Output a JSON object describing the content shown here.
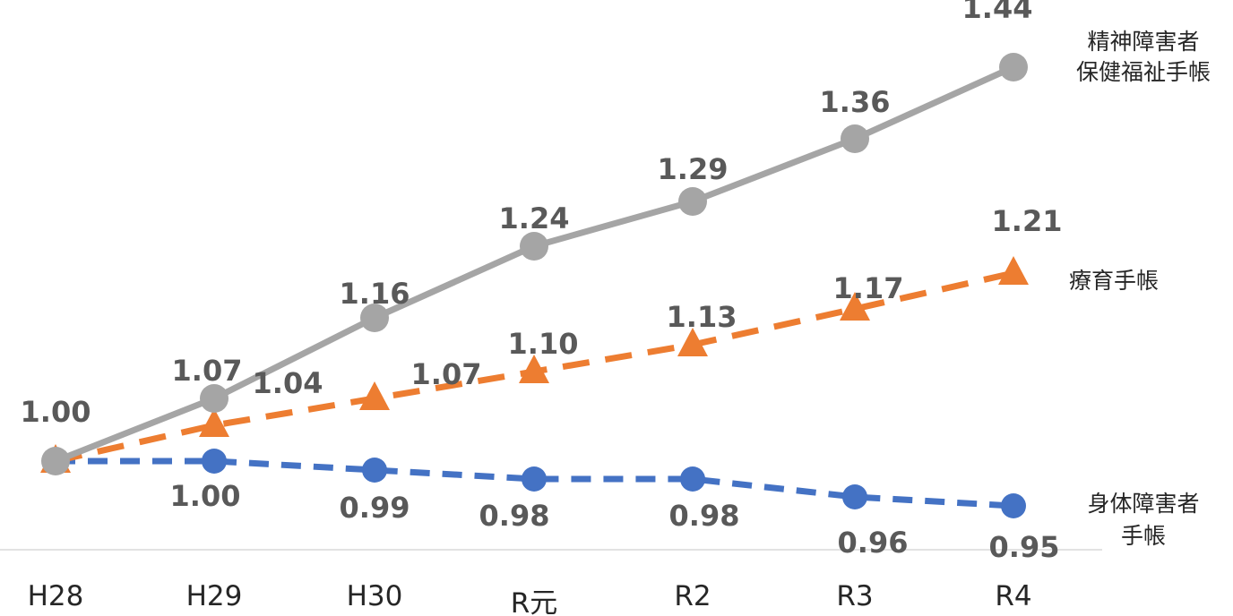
{
  "chart_data": {
    "type": "line",
    "categories": [
      "H28",
      "H29",
      "H30",
      "R元",
      "R2",
      "R3",
      "R4"
    ],
    "series": [
      {
        "key": "mental",
        "name_lines": [
          "精神障害者",
          "保健福祉手帳"
        ],
        "values": [
          1.0,
          1.07,
          1.16,
          1.24,
          1.29,
          1.36,
          1.44
        ],
        "labels": [
          "1.00",
          "1.07",
          "1.16",
          "1.24",
          "1.29",
          "1.36",
          "1.44"
        ],
        "color": "#A5A5A5",
        "line_style": "solid",
        "marker": "circle"
      },
      {
        "key": "ryoiku",
        "name_lines": [
          "療育手帳"
        ],
        "values": [
          1.0,
          1.04,
          1.07,
          1.1,
          1.13,
          1.17,
          1.21
        ],
        "labels": [
          "",
          "1.04",
          "1.07",
          "1.10",
          "1.13",
          "1.17",
          "1.21"
        ],
        "color": "#ED7D31",
        "line_style": "dashed",
        "marker": "triangle"
      },
      {
        "key": "physical",
        "name_lines": [
          "身体障害者",
          "手帳"
        ],
        "values": [
          1.0,
          1.0,
          0.99,
          0.98,
          0.98,
          0.96,
          0.95
        ],
        "labels": [
          "",
          "1.00",
          "0.99",
          "0.98",
          "0.98",
          "0.96",
          "0.95"
        ],
        "color": "#4472C4",
        "line_style": "dashed",
        "marker": "circle"
      }
    ],
    "grid": false,
    "legend": "right, inline at line ends"
  }
}
